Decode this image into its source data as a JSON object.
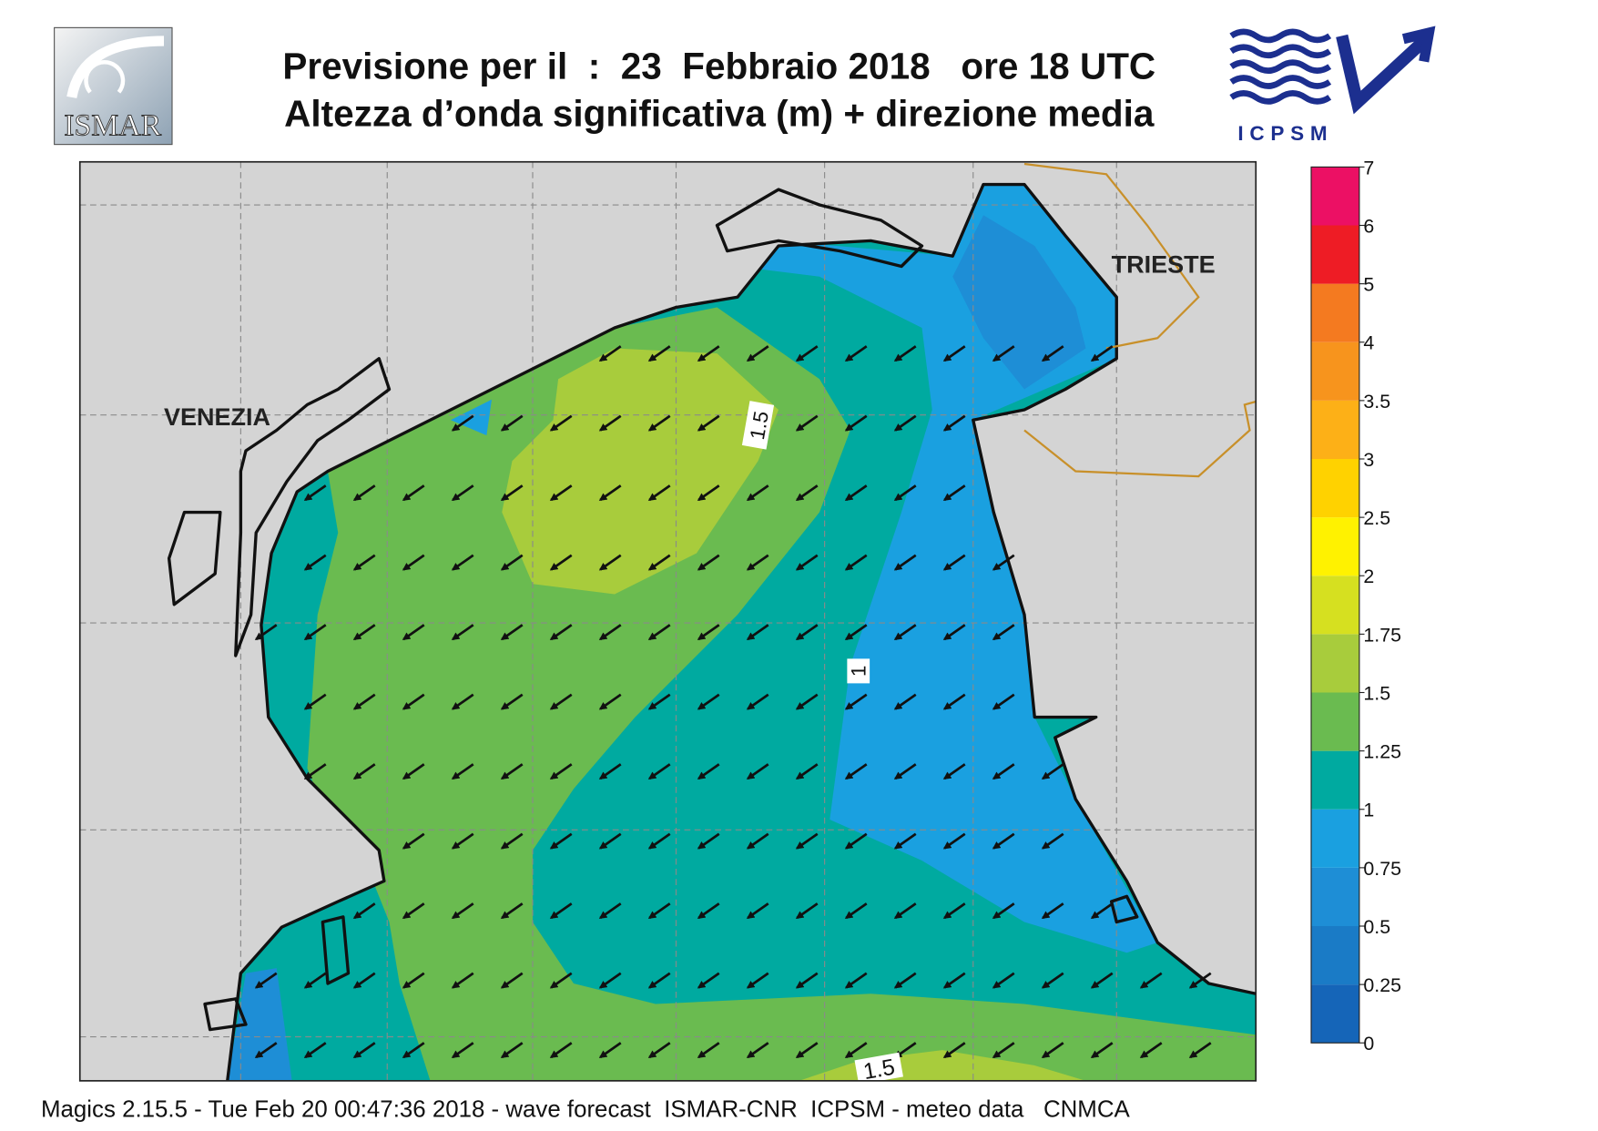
{
  "header": {
    "title": "Previsione per il  :  23  Febbraio 2018   ore 18 UTC",
    "subtitle": "Altezza d’onda significativa (m) + direzione media",
    "logo_left": "ISMAR",
    "logo_right": "ICPSM"
  },
  "map": {
    "places": [
      "VENEZIA",
      "TRIESTE"
    ],
    "contour_labels": [
      "1.5",
      "1",
      "1.5"
    ]
  },
  "colorbar": {
    "ticks": [
      0,
      0.25,
      0.5,
      0.75,
      1,
      1.25,
      1.5,
      1.75,
      2,
      2.5,
      3,
      3.5,
      4,
      5,
      6,
      7
    ],
    "colors": [
      "#1565b8",
      "#1a7bc6",
      "#1e8ed6",
      "#1aa0e0",
      "#00aaa0",
      "#6abb50",
      "#a8cc3c",
      "#d6e020",
      "#fff200",
      "#ffd200",
      "#fdb017",
      "#f7941d",
      "#f47a20",
      "#ee1c25",
      "#ec1064"
    ]
  },
  "footer": "Magics 2.15.5 - Tue Feb 20 00:47:36 2018 - wave forecast  ISMAR-CNR  ICPSM - meteo data   CNMCA"
}
